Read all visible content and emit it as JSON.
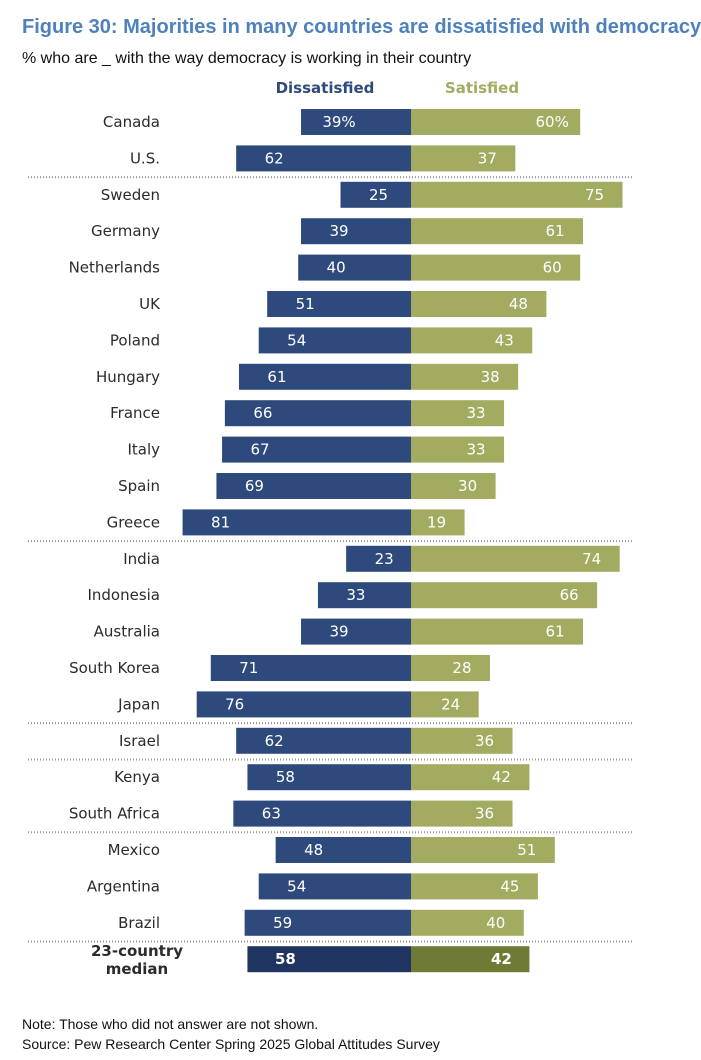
{
  "title": "Figure 30: Majorities in many countries are dissatisfied with democracy",
  "subtitle": "% who are _ with the way democracy is working in their country",
  "note": "Note: Those who did not answer are not shown.",
  "source": "Source: Pew Research Center Spring 2025 Global Attitudes Survey",
  "colors": {
    "dissatisfied": "#2e4a7d",
    "satisfied": "#a3ab60",
    "median_dissatisfied": "#1f3461",
    "median_satisfied": "#6f7a35"
  },
  "chart_data": {
    "type": "bar",
    "orientation": "horizontal-diverging",
    "series": [
      {
        "name": "Dissatisfied",
        "values": [
          39,
          62,
          25,
          39,
          40,
          51,
          54,
          61,
          66,
          67,
          69,
          81,
          23,
          33,
          39,
          71,
          76,
          62,
          58,
          63,
          48,
          54,
          59,
          58
        ]
      },
      {
        "name": "Satisfied",
        "values": [
          60,
          37,
          75,
          61,
          60,
          48,
          43,
          38,
          33,
          33,
          30,
          19,
          74,
          66,
          61,
          28,
          24,
          36,
          42,
          36,
          51,
          45,
          40,
          42
        ]
      }
    ],
    "categories": [
      "Canada",
      "U.S.",
      "Sweden",
      "Germany",
      "Netherlands",
      "UK",
      "Poland",
      "Hungary",
      "France",
      "Italy",
      "Spain",
      "Greece",
      "India",
      "Indonesia",
      "Australia",
      "South Korea",
      "Japan",
      "Israel",
      "Kenya",
      "South Africa",
      "Mexico",
      "Argentina",
      "Brazil",
      "23-country median"
    ],
    "value_labels_dissatisfied": [
      "39%",
      "62",
      "25",
      "39",
      "40",
      "51",
      "54",
      "61",
      "66",
      "67",
      "69",
      "81",
      "23",
      "33",
      "39",
      "71",
      "76",
      "62",
      "58",
      "63",
      "48",
      "54",
      "59",
      "58"
    ],
    "value_labels_satisfied": [
      "60%",
      "37",
      "75",
      "61",
      "60",
      "48",
      "43",
      "38",
      "33",
      "33",
      "30",
      "19",
      "74",
      "66",
      "61",
      "28",
      "24",
      "36",
      "42",
      "36",
      "51",
      "45",
      "40",
      "42"
    ],
    "group_separators_after_index": [
      1,
      11,
      16,
      17,
      19,
      22
    ],
    "grid": false,
    "legend": "top"
  }
}
